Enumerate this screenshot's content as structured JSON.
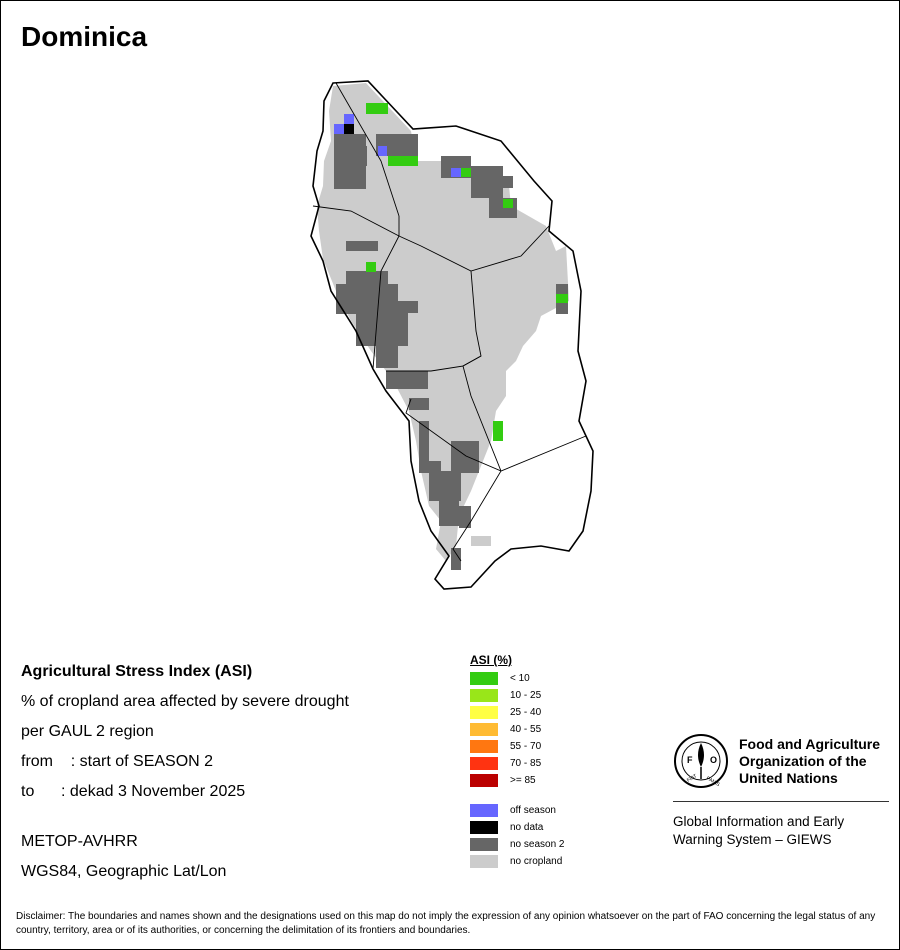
{
  "title": "Dominica",
  "info": {
    "line1": "Agricultural Stress Index (ASI)",
    "line2": "% of cropland area affected by severe drought",
    "line3": "per GAUL 2 region",
    "line4": "from    : start of SEASON 2",
    "line5": "to      : dekad 3 November 2025",
    "sensor": "METOP-AVHRR",
    "projection": "WGS84, Geographic Lat/Lon"
  },
  "legend": {
    "title": "ASI (%)",
    "classes": [
      {
        "label": "< 10",
        "color": "#33cc11"
      },
      {
        "label": "10 - 25",
        "color": "#99e619"
      },
      {
        "label": "25 - 40",
        "color": "#ffff44"
      },
      {
        "label": "40 - 55",
        "color": "#ffbb33"
      },
      {
        "label": "55 - 70",
        "color": "#ff7711"
      },
      {
        "label": "70 - 85",
        "color": "#ff3311"
      },
      {
        "label": ">= 85",
        "color": "#bb0000"
      }
    ],
    "other": [
      {
        "label": "off season",
        "color": "#6666ff"
      },
      {
        "label": "no data",
        "color": "#000000"
      },
      {
        "label": "no season 2",
        "color": "#666666"
      },
      {
        "label": "no cropland",
        "color": "#cccccc"
      }
    ]
  },
  "fao": {
    "name_line1": "Food and Agriculture",
    "name_line2": "Organization of the",
    "name_line3": "United Nations",
    "sub_line1": "Global Information and Early",
    "sub_line2": "Warning System – GIEWS",
    "logo_text": "FAO",
    "motto": "FIAT PANIS"
  },
  "disclaimer": "Disclaimer: The boundaries and names shown and the designations used on this map do not imply the expression of any opinion whatsoever on the part of FAO concerning the legal status of any country, territory, area or of its authorities, or concerning the delimitation of its frontiers and boundaries."
}
